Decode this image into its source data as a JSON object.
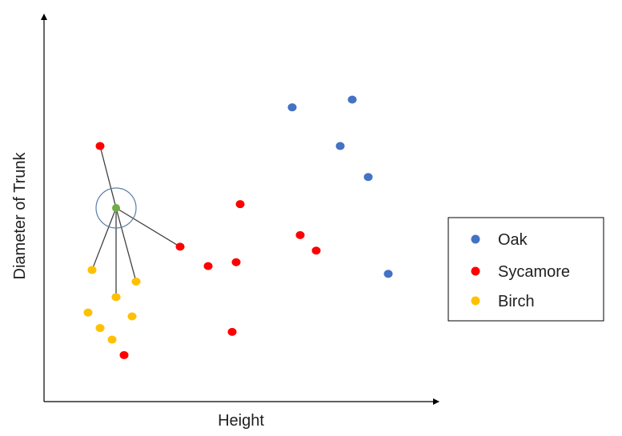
{
  "chart_data": {
    "type": "scatter",
    "title": "",
    "xlabel": "Height",
    "ylabel": "Diameter of Trunk",
    "xlim": [
      0,
      100
    ],
    "ylim": [
      0,
      100
    ],
    "grid": false,
    "ticks": false,
    "legend": {
      "placement": "right"
    },
    "series": [
      {
        "name": "Oak",
        "color": "#4472c4",
        "points": [
          {
            "x": 62,
            "y": 76
          },
          {
            "x": 77,
            "y": 78
          },
          {
            "x": 74,
            "y": 66
          },
          {
            "x": 81,
            "y": 58
          },
          {
            "x": 86,
            "y": 33
          }
        ]
      },
      {
        "name": "Sycamore",
        "color": "#ff0000",
        "points": [
          {
            "x": 14,
            "y": 66
          },
          {
            "x": 49,
            "y": 51
          },
          {
            "x": 34,
            "y": 40
          },
          {
            "x": 41,
            "y": 35
          },
          {
            "x": 64,
            "y": 43
          },
          {
            "x": 68,
            "y": 39
          },
          {
            "x": 48,
            "y": 36
          },
          {
            "x": 47,
            "y": 18
          },
          {
            "x": 20,
            "y": 12
          }
        ]
      },
      {
        "name": "Birch",
        "color": "#ffc000",
        "points": [
          {
            "x": 12,
            "y": 34
          },
          {
            "x": 18,
            "y": 27
          },
          {
            "x": 23,
            "y": 31
          },
          {
            "x": 11,
            "y": 23
          },
          {
            "x": 14,
            "y": 19
          },
          {
            "x": 17,
            "y": 16
          },
          {
            "x": 22,
            "y": 22
          }
        ]
      }
    ],
    "query_point": {
      "x": 18,
      "y": 50,
      "color": "#70ad47",
      "neighbors": [
        {
          "x": 14,
          "y": 66
        },
        {
          "x": 34,
          "y": 40
        },
        {
          "x": 12,
          "y": 34
        },
        {
          "x": 18,
          "y": 27
        },
        {
          "x": 23,
          "y": 31
        }
      ]
    }
  },
  "legend": {
    "items": [
      {
        "label": "Oak",
        "color": "#4472c4"
      },
      {
        "label": "Sycamore",
        "color": "#ff0000"
      },
      {
        "label": "Birch",
        "color": "#ffc000"
      }
    ]
  }
}
